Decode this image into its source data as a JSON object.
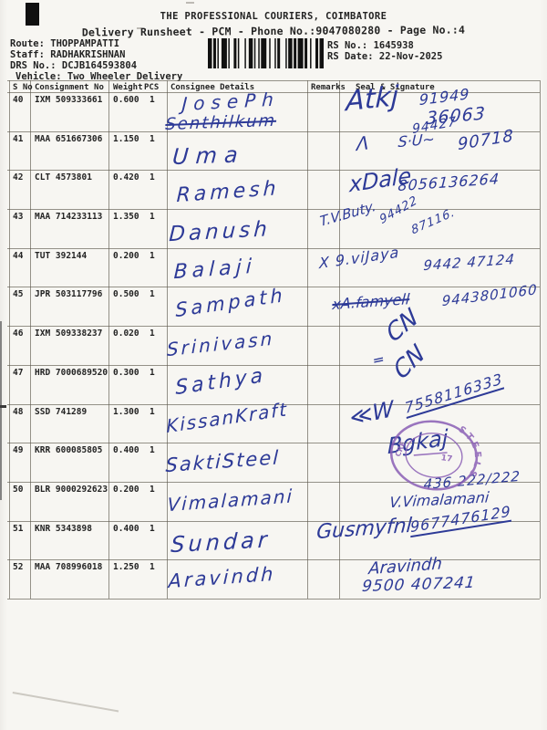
{
  "document": {
    "title": "THE PROFESSIONAL COURIERS, COIMBATORE",
    "subtitle": "Delivery Runsheet - PCM - Phone No.:9047080280 - Page No.:4",
    "meta_lines": [
      "Route: THOPPAMPATTI",
      "Staff: RADHAKRISHNAN",
      "DRS No.: DCJB164593804",
      "Vehicle: Two Wheeler Delivery"
    ],
    "rs_no_line": "RS No.: 1645938",
    "rs_date_line": "RS Date: 22-Nov-2025"
  },
  "table": {
    "columns": [
      "S No",
      "Consignment No",
      "Weight",
      "PCS",
      "Consignee Details",
      "Remarks",
      "Seal & Signature"
    ],
    "rows": [
      {
        "s_no": "40",
        "consignment_no": "IXM 509333661",
        "weight": "0.600",
        "pcs": "1",
        "remarks": "",
        "consignee_written": "JosePh",
        "consignee_written_2": "Senthilkum",
        "sig_marks": [
          "Atkj",
          "91949",
          "36063"
        ]
      },
      {
        "s_no": "41",
        "consignment_no": "MAA 651667306",
        "weight": "1.150",
        "pcs": "1",
        "remarks": "",
        "consignee_written": "Uma",
        "sig_marks": [
          "Λ",
          "S·U~",
          "94427",
          "90718"
        ]
      },
      {
        "s_no": "42",
        "consignment_no": "CLT 4573801",
        "weight": "0.420",
        "pcs": "1",
        "remarks": "",
        "consignee_written": "Ramesh",
        "sig_marks": [
          "xDale",
          "8056136264"
        ]
      },
      {
        "s_no": "43",
        "consignment_no": "MAA 714233113",
        "weight": "1.350",
        "pcs": "1",
        "remarks": "",
        "consignee_written": "Danush",
        "sig_marks": [
          "T.V.Buty.",
          "94422",
          "87116."
        ]
      },
      {
        "s_no": "44",
        "consignment_no": "TUT 392144",
        "weight": "0.200",
        "pcs": "1",
        "remarks": "",
        "consignee_written": "Balaji",
        "sig_marks": [
          "X 9.viJaya",
          "9442 47124"
        ]
      },
      {
        "s_no": "45",
        "consignment_no": "JPR 503117796",
        "weight": "0.500",
        "pcs": "1",
        "remarks": "",
        "consignee_written": "Sampath",
        "sig_marks": [
          "xA.famyell",
          "9443801060"
        ]
      },
      {
        "s_no": "46",
        "consignment_no": "IXM 509338237",
        "weight": "0.020",
        "pcs": "1",
        "remarks": "",
        "consignee_written": "Srinivasn",
        "sig_marks": [
          "CN",
          "═"
        ]
      },
      {
        "s_no": "47",
        "consignment_no": "HRD 7000689520",
        "weight": "0.300",
        "pcs": "1",
        "remarks": "",
        "consignee_written": "Sathya",
        "sig_marks": [
          "CN"
        ]
      },
      {
        "s_no": "48",
        "consignment_no": "SSD 741289",
        "weight": "1.300",
        "pcs": "1",
        "remarks": "",
        "consignee_written": "KissanKraft",
        "sig_marks": [
          "≪W",
          "7558116333"
        ]
      },
      {
        "s_no": "49",
        "consignment_no": "KRR 600085805",
        "weight": "0.400",
        "pcs": "1",
        "remarks": "",
        "consignee_written": "SaktiSteel",
        "sig_marks": [
          "Bgkaj"
        ]
      },
      {
        "s_no": "50",
        "consignment_no": "BLR 9000292623",
        "weight": "0.200",
        "pcs": "1",
        "remarks": "",
        "consignee_written": "Vimalamani",
        "sig_marks": [
          "436 222/222",
          "V.Vimalamani"
        ]
      },
      {
        "s_no": "51",
        "consignment_no": "KNR 5343898",
        "weight": "0.400",
        "pcs": "1",
        "remarks": "",
        "consignee_written": "Sundar",
        "sig_marks": [
          "Gusmyfnl",
          "9677476129"
        ]
      },
      {
        "s_no": "52",
        "consignment_no": "MAA 708996018",
        "weight": "1.250",
        "pcs": "1",
        "remarks": "",
        "consignee_written": "Aravindh",
        "sig_marks": [
          "Aravindh",
          "9500 407241"
        ]
      }
    ]
  },
  "stamp": {
    "arc_text": "STEELS",
    "inner_text": "17",
    "side_text": "CRE"
  },
  "colors": {
    "ink_blue": "#2d3a97",
    "stamp_purple": "#8a5fb5",
    "printed_black": "#232323"
  }
}
